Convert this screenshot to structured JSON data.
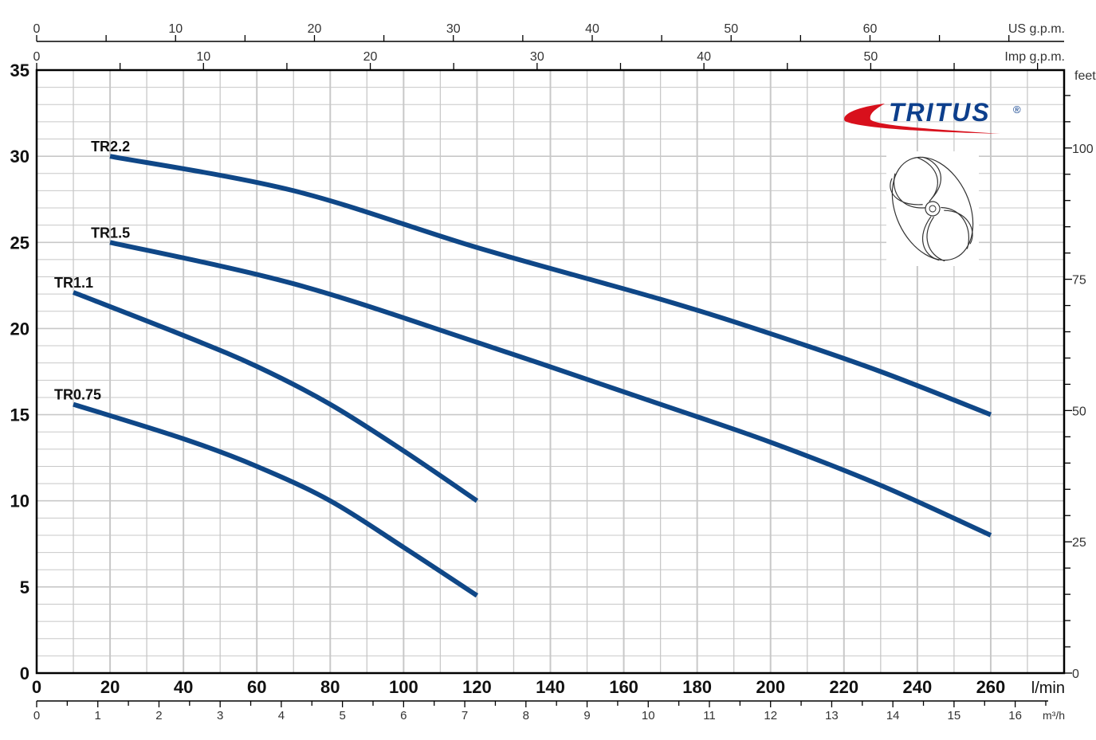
{
  "chart_data": {
    "type": "line",
    "title": "",
    "xlabel": "l/min",
    "ylabel": "",
    "xlim": [
      0,
      280
    ],
    "ylim": [
      0,
      35
    ],
    "grid": true,
    "x_ticks": [
      0,
      20,
      40,
      60,
      80,
      100,
      120,
      140,
      160,
      180,
      200,
      220,
      240,
      260
    ],
    "y_ticks": [
      0,
      5,
      10,
      15,
      20,
      25,
      30,
      35
    ],
    "secondary_axes": {
      "top_us_gpm": {
        "label": "US g.p.m.",
        "ticks": [
          0,
          10,
          20,
          30,
          40,
          50,
          60
        ]
      },
      "top_imp_gpm": {
        "label": "Imp g.p.m.",
        "ticks": [
          0,
          10,
          20,
          30,
          40,
          50
        ]
      },
      "bottom_m3h": {
        "label": "m³/h",
        "ticks": [
          0,
          1,
          2,
          3,
          4,
          5,
          6,
          7,
          8,
          9,
          10,
          11,
          12,
          13,
          14,
          15,
          16
        ]
      },
      "right_feet": {
        "label": "feet",
        "ticks": [
          0,
          25,
          50,
          75,
          100
        ]
      }
    },
    "series": [
      {
        "name": "TR2.2",
        "x": [
          20,
          70,
          120,
          170,
          200,
          230,
          260
        ],
        "y": [
          30,
          28,
          24.7,
          21.7,
          19.7,
          17.5,
          15
        ]
      },
      {
        "name": "TR1.5",
        "x": [
          20,
          70,
          120,
          170,
          200,
          230,
          260
        ],
        "y": [
          25,
          22.6,
          19.2,
          15.6,
          13.4,
          10.9,
          8
        ]
      },
      {
        "name": "TR1.1",
        "x": [
          10,
          40,
          60,
          80,
          100,
          120
        ],
        "y": [
          22.1,
          19.6,
          17.8,
          15.6,
          12.9,
          10
        ]
      },
      {
        "name": "TR0.75",
        "x": [
          10,
          40,
          60,
          80,
          100,
          120
        ],
        "y": [
          15.6,
          13.6,
          12.0,
          10.0,
          7.3,
          4.5
        ]
      }
    ]
  },
  "colors": {
    "curve": "#0f4787",
    "grid": "#c8c8c8",
    "logo_blue": "#0d3f8c",
    "logo_red": "#d8101c"
  },
  "logo": {
    "text": "TRITUS",
    "mark": "®"
  },
  "icons": {
    "impeller": "impeller-drawing"
  }
}
